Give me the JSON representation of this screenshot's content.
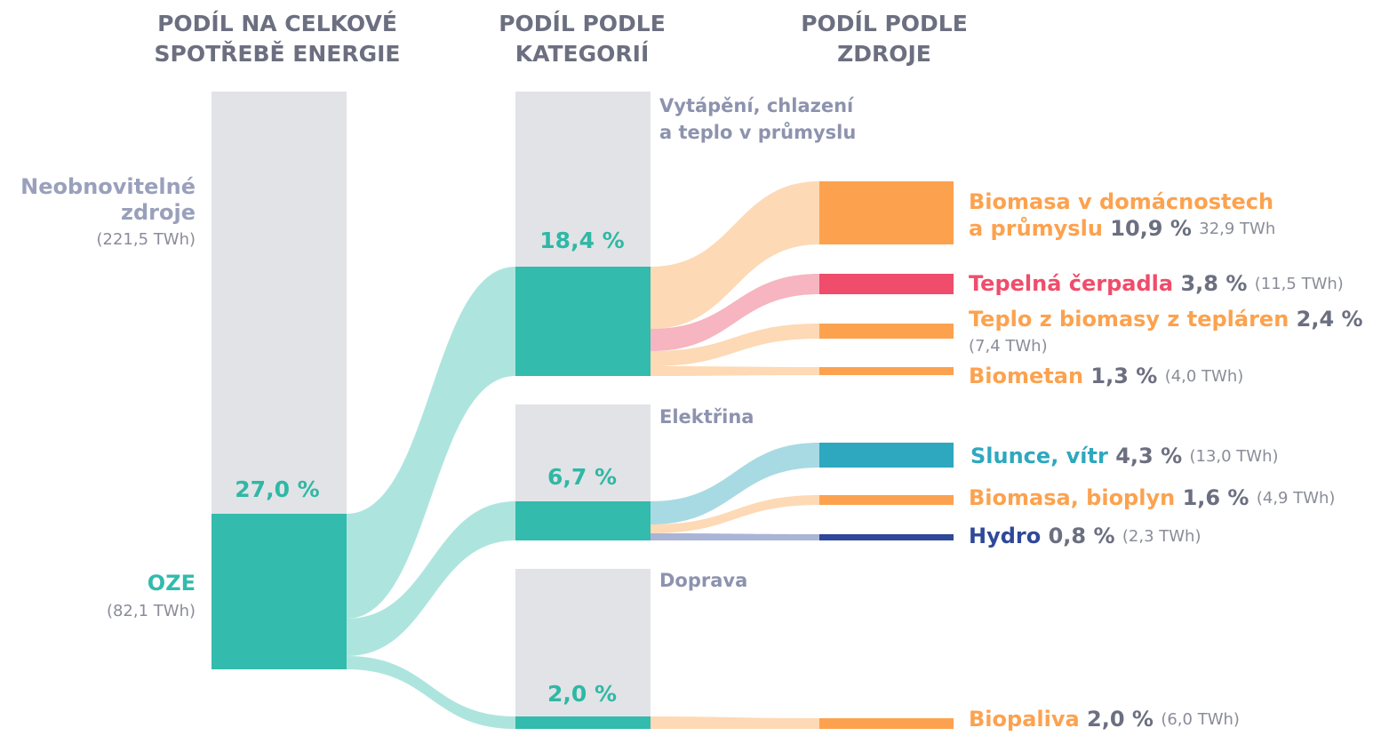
{
  "columns": [
    [
      "PODÍL NA CELKOVÉ",
      "SPOTŘEBĚ ENERGIE"
    ],
    [
      "PODÍL PODLE",
      "KATEGORIÍ"
    ],
    [
      "PODÍL PODLE",
      "ZDROJE"
    ]
  ],
  "total": {
    "nonrenewable": {
      "label": [
        "Neobnovitelné",
        "zdroje"
      ],
      "amount": "(221,5 TWh)"
    },
    "renewable": {
      "label": "OZE",
      "amount": "(82,1 TWh)",
      "share": "27,0 %"
    }
  },
  "categories": [
    {
      "label": [
        "Vytápění, chlazení",
        "a teplo v průmyslu"
      ],
      "share": "18,4 %"
    },
    {
      "label": [
        "Elektřina"
      ],
      "share": "6,7 %"
    },
    {
      "label": [
        "Doprava"
      ],
      "share": "2,0 %"
    }
  ],
  "sources": [
    {
      "name": [
        "Biomasa v domácnostech",
        "a průmyslu"
      ],
      "share": "10,9 %",
      "amount": "32,9 TWh"
    },
    {
      "name": [
        "Tepelná čerpadla"
      ],
      "share": "3,8 %",
      "amount": "(11,5 TWh)"
    },
    {
      "name": [
        "Teplo z biomasy z tepláren"
      ],
      "share": "2,4 %",
      "amount": "(7,4 TWh)"
    },
    {
      "name": [
        "Biometan"
      ],
      "share": "1,3 %",
      "amount": "(4,0 TWh)"
    },
    {
      "name": [
        "Slunce, vítr"
      ],
      "share": "4,3 %",
      "amount": "(13,0 TWh)"
    },
    {
      "name": [
        "Biomasa, bioplyn"
      ],
      "share": "1,6 %",
      "amount": "(4,9 TWh)"
    },
    {
      "name": [
        "Hydro"
      ],
      "share": "0,8 %",
      "amount": "(2,3 TWh)"
    },
    {
      "name": [
        "Biopaliva"
      ],
      "share": "2,0 %",
      "amount": "(6,0 TWh)"
    }
  ]
}
